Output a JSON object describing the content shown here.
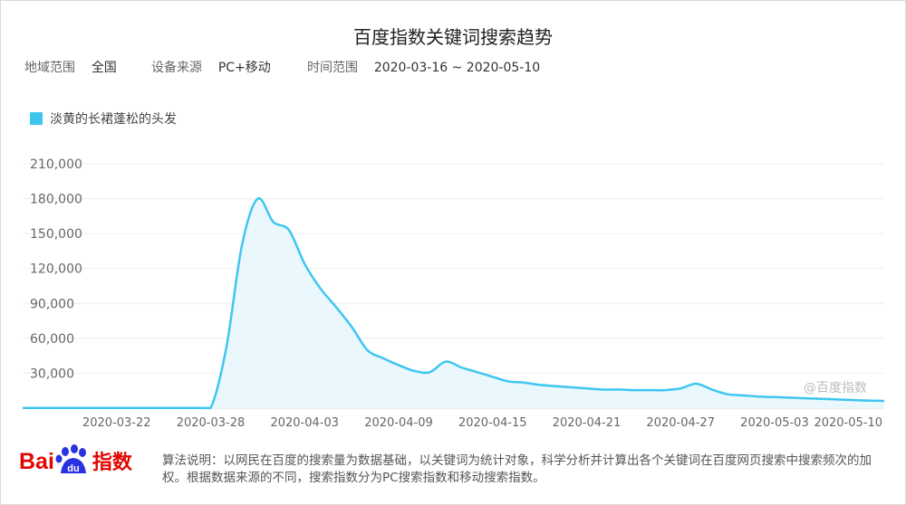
{
  "page": {
    "title": "百度指数关键词搜索趋势",
    "meta": [
      {
        "label": "地域范围",
        "value": "全国"
      },
      {
        "label": "设备来源",
        "value": "PC+移动"
      },
      {
        "label": "时间范围",
        "value": "2020-03-16 ~ 2020-05-10"
      }
    ],
    "watermark": "@百度指数",
    "footer_note": "算法说明：以网民在百度的搜索量为数据基础，以关键词为统计对象，科学分析并计算出各个关键词在百度网页搜索中搜索频次的加权。根据数据来源的不同，搜索指数分为PC搜索指数和移动搜索指数。",
    "logo": {
      "bai": "Bai",
      "du": "du",
      "suffix": "指数"
    }
  },
  "colors": {
    "line": "#3ec6f0",
    "fill": "#eaf7fc",
    "grid": "#eeeeee",
    "axis_text": "#666666",
    "brand_red": "#e10601",
    "brand_blue": "#2932e1"
  },
  "chart_data": {
    "type": "area",
    "title": "百度指数关键词搜索趋势",
    "series": [
      {
        "name": "淡黄的长裙蓬松的头发",
        "values": [
          200,
          200,
          200,
          200,
          200,
          200,
          200,
          200,
          200,
          200,
          200,
          200,
          200,
          52000,
          140000,
          180000,
          160000,
          153000,
          124000,
          103000,
          87000,
          70000,
          50000,
          43000,
          37000,
          32000,
          31000,
          40000,
          35000,
          31000,
          27000,
          23000,
          22000,
          20000,
          19000,
          18000,
          17000,
          16000,
          16000,
          15500,
          15500,
          15500,
          17000,
          21000,
          16000,
          12000,
          11000,
          10000,
          9500,
          9000,
          8500,
          8000,
          7500,
          7000,
          6500,
          6200
        ]
      }
    ],
    "x_start": "2020-03-16",
    "x_end": "2020-05-10",
    "x_ticks": [
      "2020-03-22",
      "2020-03-28",
      "2020-04-03",
      "2020-04-09",
      "2020-04-15",
      "2020-04-21",
      "2020-04-27",
      "2020-05-03",
      "2020-05-10"
    ],
    "y_ticks": [
      30000,
      60000,
      90000,
      120000,
      150000,
      180000,
      210000
    ],
    "y_tick_labels": [
      "30,000",
      "60,000",
      "90,000",
      "120,000",
      "150,000",
      "180,000",
      "210,000"
    ],
    "ylim": [
      0,
      210000
    ],
    "grid": true,
    "legend": "top-left"
  }
}
